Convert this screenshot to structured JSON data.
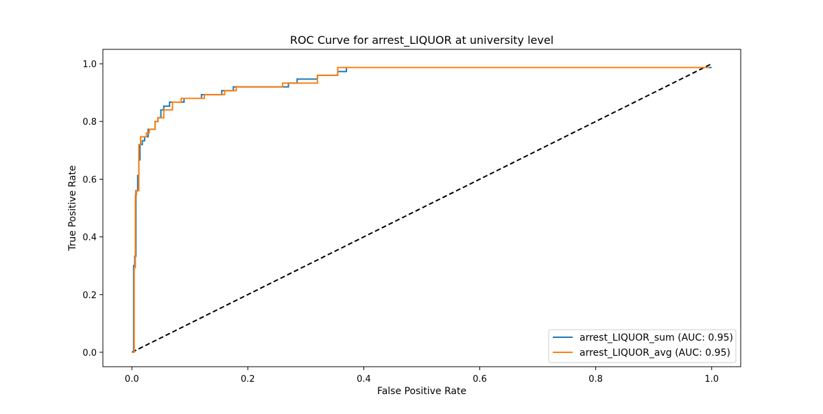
{
  "chart_data": {
    "type": "line",
    "title": "ROC Curve for arrest_LIQUOR at university level",
    "xlabel": "False Positive Rate",
    "ylabel": "True Positive Rate",
    "xlim": [
      -0.05,
      1.05
    ],
    "ylim": [
      -0.05,
      1.05
    ],
    "xticks": [
      0.0,
      0.2,
      0.4,
      0.6,
      0.8,
      1.0
    ],
    "xtick_labels": [
      "0.0",
      "0.2",
      "0.4",
      "0.6",
      "0.8",
      "1.0"
    ],
    "yticks": [
      0.0,
      0.2,
      0.4,
      0.6,
      0.8,
      1.0
    ],
    "ytick_labels": [
      "0.0",
      "0.2",
      "0.4",
      "0.6",
      "0.8",
      "1.0"
    ],
    "grid": false,
    "legend_position": "lower right",
    "series": [
      {
        "name": "arrest_LIQUOR_sum (AUC: 0.95)",
        "color": "#1f77b4",
        "dash": "solid",
        "x": [
          0.0,
          0.003,
          0.003,
          0.005,
          0.005,
          0.007,
          0.007,
          0.01,
          0.01,
          0.012,
          0.012,
          0.014,
          0.014,
          0.018,
          0.018,
          0.022,
          0.022,
          0.028,
          0.028,
          0.04,
          0.04,
          0.045,
          0.045,
          0.05,
          0.05,
          0.055,
          0.055,
          0.065,
          0.065,
          0.075,
          0.075,
          0.09,
          0.09,
          0.12,
          0.12,
          0.155,
          0.155,
          0.175,
          0.175,
          0.27,
          0.27,
          0.285,
          0.285,
          0.32,
          0.32,
          0.355,
          0.355,
          0.37,
          0.37,
          1.0
        ],
        "y": [
          0.0,
          0.0,
          0.3,
          0.3,
          0.333,
          0.333,
          0.56,
          0.56,
          0.613,
          0.613,
          0.667,
          0.667,
          0.72,
          0.72,
          0.733,
          0.733,
          0.747,
          0.747,
          0.773,
          0.773,
          0.8,
          0.8,
          0.813,
          0.813,
          0.84,
          0.84,
          0.853,
          0.853,
          0.867,
          0.867,
          0.867,
          0.867,
          0.88,
          0.88,
          0.893,
          0.893,
          0.907,
          0.907,
          0.92,
          0.92,
          0.933,
          0.933,
          0.947,
          0.947,
          0.96,
          0.96,
          0.973,
          0.973,
          0.987,
          0.987
        ]
      },
      {
        "name": "arrest_LIQUOR_avg (AUC: 0.95)",
        "color": "#ff7f0e",
        "dash": "solid",
        "x": [
          0.0,
          0.004,
          0.004,
          0.006,
          0.006,
          0.008,
          0.008,
          0.012,
          0.012,
          0.015,
          0.015,
          0.025,
          0.025,
          0.03,
          0.03,
          0.04,
          0.04,
          0.045,
          0.045,
          0.055,
          0.055,
          0.07,
          0.07,
          0.085,
          0.085,
          0.125,
          0.125,
          0.16,
          0.16,
          0.18,
          0.18,
          0.26,
          0.26,
          0.32,
          0.32,
          0.355,
          0.355,
          0.995
        ],
        "y": [
          0.0,
          0.0,
          0.293,
          0.293,
          0.547,
          0.547,
          0.56,
          0.56,
          0.72,
          0.72,
          0.747,
          0.747,
          0.76,
          0.76,
          0.773,
          0.773,
          0.8,
          0.8,
          0.813,
          0.813,
          0.84,
          0.84,
          0.867,
          0.867,
          0.88,
          0.88,
          0.893,
          0.893,
          0.907,
          0.907,
          0.92,
          0.92,
          0.933,
          0.933,
          0.96,
          0.96,
          0.987,
          0.987
        ]
      },
      {
        "name": "",
        "color": "#000000",
        "dash": "dashed",
        "x": [
          0.0,
          1.0
        ],
        "y": [
          0.0,
          1.0
        ]
      }
    ]
  }
}
